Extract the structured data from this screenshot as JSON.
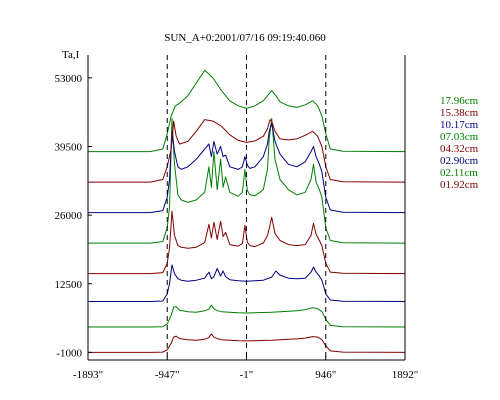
{
  "chart_data": {
    "type": "line",
    "title": "SUN_A+0:2001/07/16 09:19:40.060",
    "ylabel": "Ta,I",
    "xlabel": "",
    "xlim": [
      -1893,
      1892
    ],
    "ylim": [
      -2500,
      57500
    ],
    "x_ticks": [
      -1893,
      -947,
      -1,
      946,
      1892
    ],
    "x_tick_labels": [
      "-1893\"",
      "-947\"",
      "-1\"",
      "946\"",
      "1892\""
    ],
    "y_ticks": [
      -1000,
      12500,
      26000,
      39500,
      53000
    ],
    "y_tick_labels": [
      "-1000",
      "12500",
      "26000",
      "39500",
      "53000"
    ],
    "vlines": [
      -947,
      -1,
      946
    ],
    "legend_position": "right",
    "colors": {
      "green": "#008000",
      "red": "#800000",
      "blue": "#000080"
    },
    "series": [
      {
        "name": "01.92cm",
        "color": "#800000",
        "baseline": -1000,
        "amplitude": 3500,
        "edge": 2500,
        "x": [
          -1893,
          -1150,
          -1000,
          -947,
          -900,
          -870,
          -840,
          -800,
          -700,
          -600,
          -500,
          -450,
          -420,
          -390,
          -350,
          -300,
          -200,
          -100,
          -1,
          100,
          200,
          300,
          400,
          500,
          600,
          700,
          790,
          850,
          900,
          946,
          1000,
          1150,
          1892
        ],
        "y": [
          -1000,
          -1000,
          -950,
          -500,
          800,
          2000,
          2200,
          1700,
          1500,
          1400,
          1600,
          1900,
          2600,
          2000,
          1700,
          1500,
          1400,
          1300,
          1250,
          1300,
          1350,
          1400,
          1500,
          1600,
          1650,
          1800,
          2100,
          2000,
          1500,
          300,
          -700,
          -950,
          -1000
        ]
      },
      {
        "name": "02.11cm",
        "color": "#008000",
        "baseline": 4000,
        "amplitude": 4500,
        "edge": 3000,
        "x": [
          -1893,
          -1150,
          -1000,
          -947,
          -900,
          -870,
          -840,
          -800,
          -700,
          -600,
          -500,
          -450,
          -420,
          -390,
          -350,
          -300,
          -200,
          -100,
          -1,
          100,
          200,
          300,
          400,
          500,
          600,
          700,
          790,
          850,
          900,
          946,
          1000,
          1150,
          1892
        ],
        "y": [
          4000,
          4000,
          4050,
          4600,
          6300,
          7900,
          8000,
          7300,
          7000,
          6900,
          7200,
          7500,
          8300,
          7600,
          7200,
          7000,
          6900,
          6800,
          6750,
          6800,
          6850,
          6900,
          7000,
          7100,
          7200,
          7400,
          7800,
          7600,
          7000,
          5500,
          4300,
          4050,
          4000
        ]
      },
      {
        "name": "02.90cm",
        "color": "#000080",
        "baseline": 9000,
        "amplitude": 7500,
        "edge": 4000,
        "x": [
          -1893,
          -1150,
          -1000,
          -947,
          -920,
          -890,
          -860,
          -820,
          -780,
          -700,
          -600,
          -500,
          -450,
          -420,
          -390,
          -350,
          -310,
          -280,
          -250,
          -200,
          -100,
          -1,
          100,
          200,
          300,
          350,
          400,
          500,
          600,
          700,
          770,
          800,
          830,
          870,
          900,
          946,
          1000,
          1150,
          1892
        ],
        "y": [
          9000,
          9000,
          9100,
          10500,
          12500,
          16200,
          14500,
          13500,
          13200,
          13000,
          13200,
          13600,
          14800,
          13500,
          13900,
          15500,
          14000,
          15000,
          13900,
          13300,
          13100,
          13000,
          13100,
          13200,
          13800,
          15000,
          14200,
          13600,
          13500,
          13600,
          14800,
          15800,
          14800,
          14000,
          13200,
          10500,
          9300,
          9050,
          9000
        ]
      },
      {
        "name": "04.32cm",
        "color": "#800000",
        "baseline": 14500,
        "amplitude": 10000,
        "edge": 5000,
        "x": [
          -1893,
          -1150,
          -1000,
          -947,
          -920,
          -890,
          -860,
          -820,
          -780,
          -700,
          -600,
          -500,
          -450,
          -420,
          -390,
          -350,
          -310,
          -280,
          -250,
          -200,
          -100,
          -50,
          -20,
          10,
          40,
          100,
          200,
          250,
          270,
          300,
          340,
          400,
          500,
          600,
          700,
          770,
          800,
          830,
          870,
          900,
          946,
          1000,
          1150,
          1892
        ],
        "y": [
          14500,
          14500,
          14700,
          16500,
          19500,
          26800,
          22000,
          20000,
          19700,
          19500,
          19700,
          20600,
          24200,
          21500,
          24600,
          21200,
          24800,
          21800,
          22600,
          20200,
          19900,
          20400,
          24000,
          20600,
          20000,
          19800,
          20500,
          22000,
          23300,
          25600,
          22400,
          21000,
          20200,
          20000,
          20200,
          22000,
          24400,
          22200,
          21000,
          20000,
          16500,
          14800,
          14550,
          14500
        ]
      },
      {
        "name": "07.03cm",
        "color": "#008000",
        "baseline": 20500,
        "amplitude": 14000,
        "edge": 6000,
        "x": [
          -1893,
          -1150,
          -1000,
          -947,
          -920,
          -890,
          -860,
          -820,
          -780,
          -700,
          -600,
          -500,
          -450,
          -420,
          -390,
          -350,
          -310,
          -280,
          -250,
          -200,
          -100,
          -50,
          -20,
          10,
          40,
          100,
          200,
          250,
          270,
          300,
          340,
          400,
          500,
          600,
          700,
          770,
          800,
          830,
          870,
          900,
          946,
          1000,
          1150,
          1892
        ],
        "y": [
          20500,
          20500,
          20800,
          23500,
          27500,
          45000,
          36000,
          30000,
          29000,
          28500,
          29000,
          30500,
          35500,
          31500,
          38500,
          31000,
          37000,
          31500,
          33500,
          30500,
          29700,
          30500,
          35000,
          30800,
          30000,
          29800,
          31000,
          35000,
          41000,
          45000,
          37000,
          33000,
          31000,
          30000,
          30500,
          33000,
          36000,
          32500,
          31000,
          29500,
          23500,
          21000,
          20550,
          20500
        ]
      },
      {
        "name": "10.17cm",
        "color": "#000080",
        "baseline": 26500,
        "amplitude": 13000,
        "edge": 6500,
        "x": [
          -1893,
          -1150,
          -1000,
          -947,
          -920,
          -890,
          -860,
          -820,
          -780,
          -700,
          -600,
          -500,
          -450,
          -420,
          -390,
          -350,
          -310,
          -280,
          -250,
          -200,
          -100,
          -50,
          -20,
          10,
          40,
          100,
          200,
          250,
          270,
          300,
          340,
          400,
          500,
          600,
          700,
          770,
          800,
          830,
          870,
          900,
          946,
          1000,
          1150,
          1892
        ],
        "y": [
          26500,
          26500,
          26900,
          29500,
          33000,
          42500,
          38500,
          35500,
          35000,
          35500,
          37000,
          39000,
          40000,
          37500,
          40500,
          38000,
          39500,
          37500,
          37800,
          35500,
          35000,
          35500,
          37500,
          35800,
          35200,
          35500,
          37500,
          40000,
          42500,
          44000,
          40500,
          38000,
          36000,
          35500,
          36500,
          38500,
          39500,
          37500,
          36000,
          34500,
          29500,
          27000,
          26550,
          26500
        ]
      },
      {
        "name": "15.38cm",
        "color": "#800000",
        "baseline": 32500,
        "amplitude": 12000,
        "edge": 6500,
        "x": [
          -1893,
          -1150,
          -1000,
          -947,
          -900,
          -870,
          -840,
          -800,
          -700,
          -600,
          -500,
          -400,
          -300,
          -200,
          -100,
          -1,
          100,
          200,
          250,
          280,
          300,
          340,
          400,
          500,
          600,
          700,
          790,
          850,
          900,
          946,
          1000,
          1150,
          1892
        ],
        "y": [
          32500,
          32500,
          33000,
          35500,
          39000,
          44500,
          41500,
          40000,
          40500,
          42500,
          44800,
          44500,
          43500,
          41800,
          40700,
          40300,
          40600,
          41500,
          43000,
          44800,
          44500,
          42500,
          41000,
          40800,
          41000,
          41700,
          42500,
          41500,
          39500,
          35500,
          33000,
          32550,
          32500
        ]
      },
      {
        "name": "17.96cm",
        "color": "#008000",
        "baseline": 38500,
        "amplitude": 12000,
        "edge": 7000,
        "x": [
          -1893,
          -1150,
          -1000,
          -947,
          -900,
          -850,
          -800,
          -700,
          -600,
          -500,
          -400,
          -300,
          -200,
          -100,
          -1,
          100,
          200,
          250,
          300,
          350,
          400,
          500,
          600,
          700,
          790,
          850,
          900,
          946,
          1000,
          1150,
          1892
        ],
        "y": [
          38500,
          38500,
          39000,
          42000,
          45500,
          47500,
          48000,
          49500,
          52000,
          54500,
          53000,
          50500,
          48500,
          47500,
          47000,
          47500,
          48500,
          49500,
          50500,
          49500,
          48300,
          47500,
          47200,
          47700,
          48500,
          47500,
          45500,
          42000,
          39000,
          38550,
          38500
        ]
      }
    ]
  }
}
